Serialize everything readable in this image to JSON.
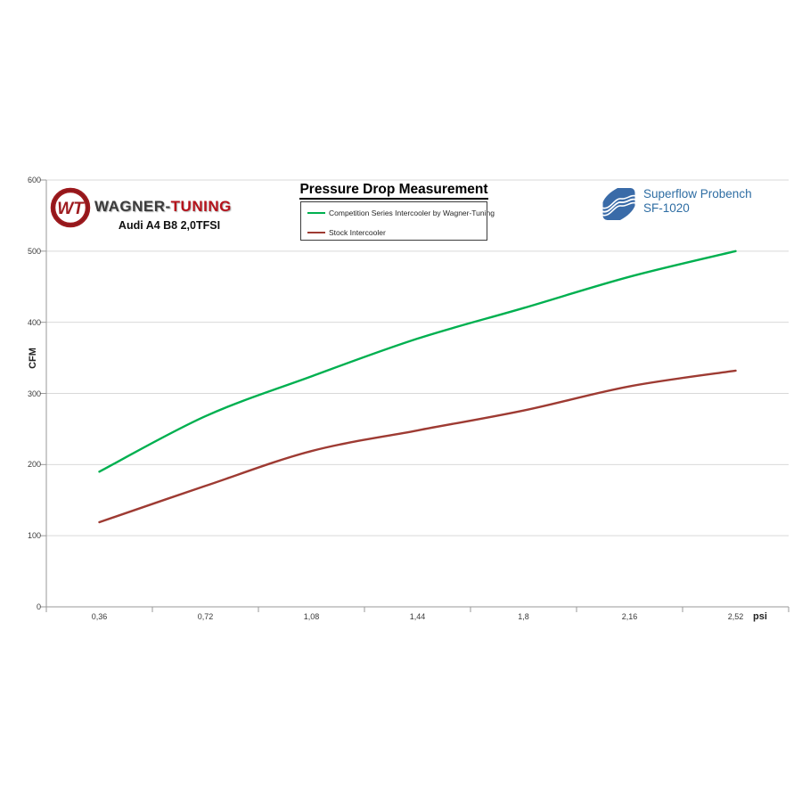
{
  "header": {
    "wagner": {
      "logo_monogram": "WT",
      "brand_primary": "WAGNER",
      "brand_hyphen": "-",
      "brand_secondary": "TUNING",
      "model": "Audi A4 B8 2,0TFSI"
    },
    "superflow": {
      "line1": "Superflow Probench",
      "line2": "SF-1020"
    }
  },
  "chart_data": {
    "type": "line",
    "title": "Pressure Drop Measurement",
    "xlabel": "psi",
    "ylabel": "CFM",
    "categories": [
      "0,36",
      "0,72",
      "1,08",
      "1,44",
      "1,8",
      "2,16",
      "2,52"
    ],
    "series": [
      {
        "name": "Competition Series Intercooler by Wagner-Tuning",
        "color": "#00B050",
        "values": [
          190,
          268,
          324,
          377,
          420,
          464,
          500
        ]
      },
      {
        "name": "Stock Intercooler",
        "color": "#9E3B33",
        "values": [
          119,
          170,
          219,
          248,
          276,
          310,
          332
        ]
      }
    ],
    "ylim": [
      0,
      600
    ],
    "ytick_interval": 100,
    "grid": true,
    "smooth": true,
    "legend_position": "top-center",
    "grid_color": "#D9D9D9",
    "axis_color": "#9a9a9a"
  },
  "colors": {
    "background": "#ffffff",
    "brand_red": "#b5121b",
    "brand_gray": "#3b3b3b",
    "logo_ring_red": "#9e1b1f",
    "superflow_blue_logo": "#3a6ba8",
    "superflow_blue_text": "#2e6da3"
  }
}
